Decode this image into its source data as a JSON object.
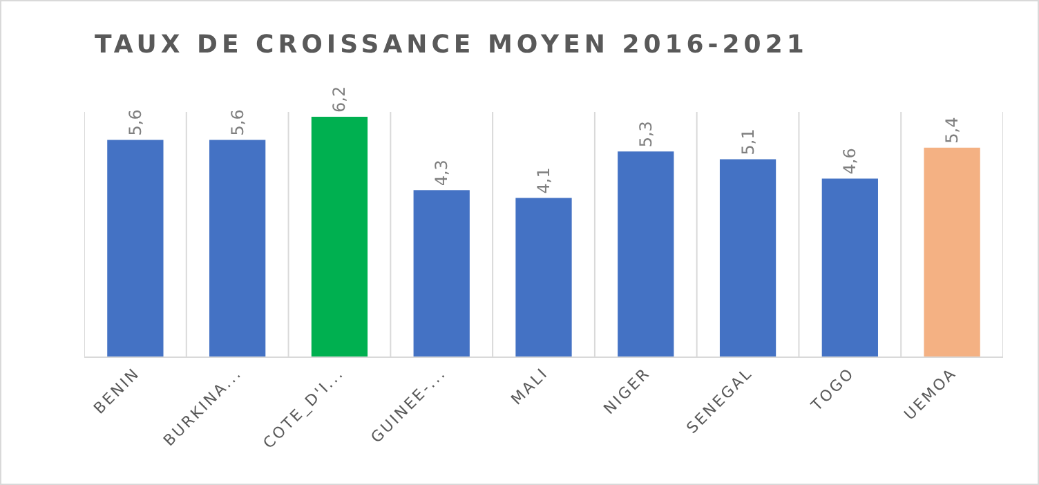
{
  "chart_data": {
    "type": "bar",
    "title": "TAUX DE CROISSANCE MOYEN 2016-2021",
    "categories": [
      "BENIN",
      "BURKINA...",
      "COTE_D'I...",
      "GUINEE-...",
      "MALI",
      "NIGER",
      "SENEGAL",
      "TOGO",
      "UEMOA"
    ],
    "values": [
      5.6,
      5.6,
      6.2,
      4.3,
      4.1,
      5.3,
      5.1,
      4.6,
      5.4
    ],
    "value_labels": [
      "5,6",
      "5,6",
      "6,2",
      "4,3",
      "4,1",
      "5,3",
      "5,1",
      "4,6",
      "5,4"
    ],
    "colors": [
      "#4472c4",
      "#4472c4",
      "#00b050",
      "#4472c4",
      "#4472c4",
      "#4472c4",
      "#4472c4",
      "#4472c4",
      "#f4b183"
    ],
    "grid": "x",
    "legend": false
  }
}
